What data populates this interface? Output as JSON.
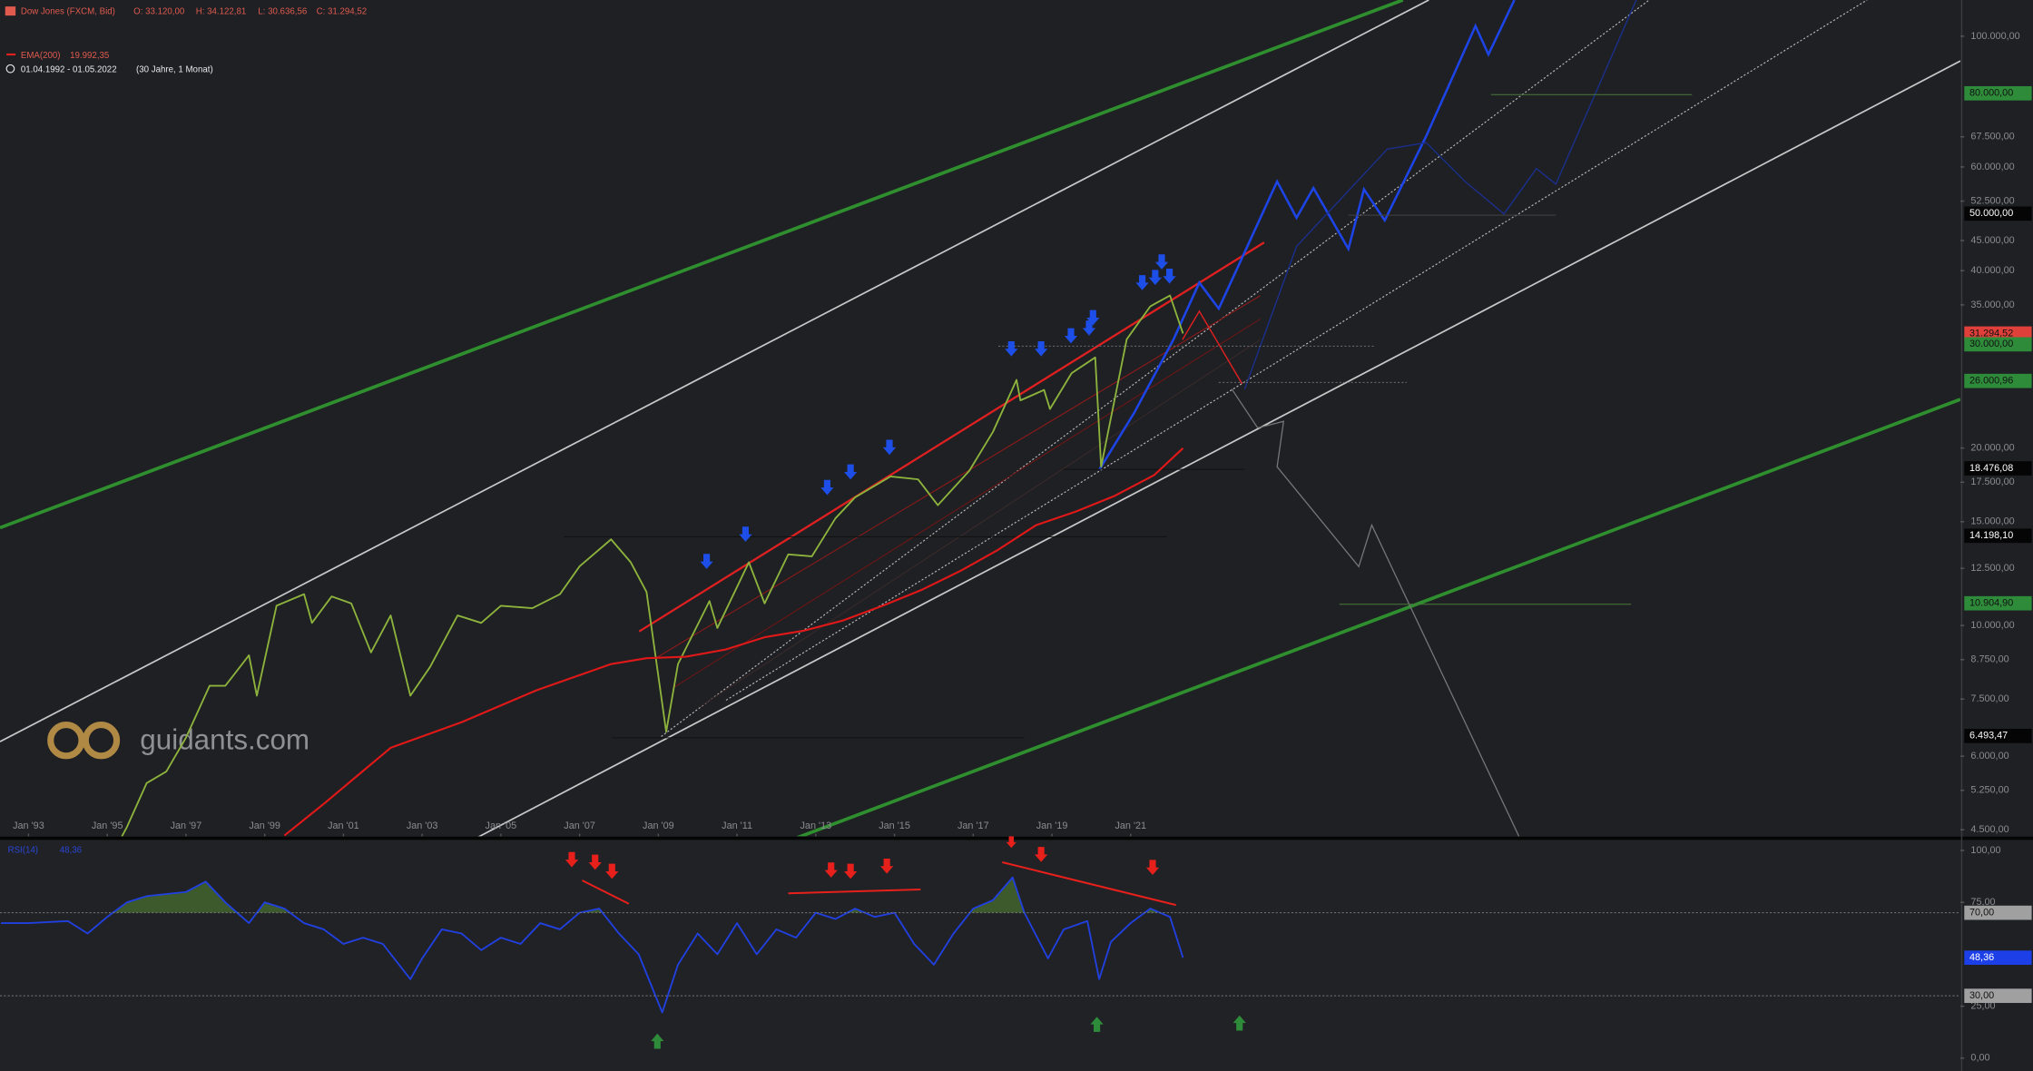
{
  "header": {
    "ohlc": [
      "O: 33.120,00",
      "H: 34.122,81",
      "L: 30.636,56",
      "C: 31.294,52"
    ],
    "range": "01.04.1992 - 01.05.2022",
    "span": "(30 Jahre, 1 Monat)"
  },
  "watermark": "guidants.com",
  "chart_data": [
    {
      "type": "line",
      "log_scale": true,
      "xlim": [
        1992.275,
        2042.08
      ],
      "ylim": [
        4387,
        115200
      ],
      "xticks": [
        {
          "value": 1993,
          "label": "Jan '93"
        },
        {
          "value": 1995,
          "label": "Jan '95"
        },
        {
          "value": 1997,
          "label": "Jan '97"
        },
        {
          "value": 1999,
          "label": "Jan '99"
        },
        {
          "value": 2001,
          "label": "Jan '01"
        },
        {
          "value": 2003,
          "label": "Jan '03"
        },
        {
          "value": 2005,
          "label": "Jan '05"
        },
        {
          "value": 2007,
          "label": "Jan '07"
        },
        {
          "value": 2009,
          "label": "Jan '09"
        },
        {
          "value": 2011,
          "label": "Jan '11"
        },
        {
          "value": 2013,
          "label": "Jan '13"
        },
        {
          "value": 2015,
          "label": "Jan '15"
        },
        {
          "value": 2017,
          "label": "Jan '17"
        },
        {
          "value": 2019,
          "label": "Jan '19"
        },
        {
          "value": 2021,
          "label": "Jan '21"
        }
      ],
      "yticks": [
        {
          "value": 100000,
          "label": "100.000,00"
        },
        {
          "value": 67500,
          "label": "67.500,00"
        },
        {
          "value": 60000,
          "label": "60.000,00"
        },
        {
          "value": 52500,
          "label": "52.500,00"
        },
        {
          "value": 45000,
          "label": "45.000,00"
        },
        {
          "value": 40000,
          "label": "40.000,00"
        },
        {
          "value": 35000,
          "label": "35.000,00"
        },
        {
          "value": 20000,
          "label": "20.000,00"
        },
        {
          "value": 17500,
          "label": "17.500,00"
        },
        {
          "value": 15000,
          "label": "15.000,00"
        },
        {
          "value": 12500,
          "label": "12.500,00"
        },
        {
          "value": 10000,
          "label": "10.000,00"
        },
        {
          "value": 8750,
          "label": "8.750,00"
        },
        {
          "value": 7500,
          "label": "7.500,00"
        },
        {
          "value": 6000,
          "label": "6.000,00"
        },
        {
          "value": 5250,
          "label": "5.250,00"
        },
        {
          "value": 4500,
          "label": "4.500,00"
        }
      ],
      "levels": [
        {
          "value": 80000,
          "label": "80.000,00",
          "color": "#2e8b3a",
          "text_color": "#111111"
        },
        {
          "value": 50000,
          "label": "50.000,00",
          "color": "#050505",
          "text_color": "#ffffff"
        },
        {
          "value": 31294.52,
          "label": "31.294,52",
          "color": "#e0403a",
          "text_color": "#111111"
        },
        {
          "value": 30000,
          "label": "30.000,00",
          "color": "#2e8b3a",
          "text_color": "#111111"
        },
        {
          "value": 26000.96,
          "label": "26.000,96",
          "color": "#2e8b3a",
          "text_color": "#111111"
        },
        {
          "value": 18476.08,
          "label": "18.476,08",
          "color": "#050505",
          "text_color": "#ffffff"
        },
        {
          "value": 14198.1,
          "label": "14.198,10",
          "color": "#050505",
          "text_color": "#ffffff"
        },
        {
          "value": 10904.9,
          "label": "10.904,90",
          "color": "#2e8b3a",
          "text_color": "#111111"
        },
        {
          "value": 6493.47,
          "label": "6.493,47",
          "color": "#050505",
          "text_color": "#ffffff"
        }
      ],
      "series": [
        {
          "name": "Dow Jones (FXCM, Bid)",
          "color": "#8db33c",
          "x": [
            1992.25,
            1993,
            1994,
            1994.9,
            1995.5,
            1996,
            1996.5,
            1997,
            1997.6,
            1998,
            1998.6,
            1998.8,
            1999.3,
            2000,
            2000.2,
            2000.7,
            2001.2,
            2001.7,
            2002.2,
            2002.7,
            2003.2,
            2003.9,
            2004.5,
            2005,
            2005.8,
            2006.5,
            2007,
            2007.8,
            2008.3,
            2008.7,
            2009.2,
            2009.5,
            2010.3,
            2010.5,
            2011.3,
            2011.7,
            2012.3,
            2012.9,
            2013.5,
            2014,
            2014.9,
            2015.6,
            2016.1,
            2016.9,
            2017.5,
            2018.1,
            2018.2,
            2018.8,
            2018.95,
            2019.5,
            2020.1,
            2020.25,
            2020.9,
            2021.5,
            2022,
            2022.33
          ],
          "values": [
            3300,
            3300,
            3900,
            3830,
            4550,
            5400,
            5650,
            6450,
            7900,
            7900,
            8900,
            7600,
            10800,
            11300,
            10100,
            11200,
            10900,
            9000,
            10400,
            7600,
            8500,
            10400,
            10100,
            10800,
            10700,
            11300,
            12600,
            14000,
            12800,
            11400,
            6600,
            8600,
            11000,
            9900,
            12800,
            10900,
            13200,
            13100,
            15200,
            16500,
            17900,
            17700,
            16000,
            18300,
            21300,
            26100,
            24100,
            25100,
            23300,
            26800,
            28500,
            18600,
            30600,
            34800,
            36300,
            31294.52
          ]
        },
        {
          "name": "EMA(200)",
          "last_label": "19.992,35",
          "color": "#e01818",
          "x": [
            1999.5,
            2000.5,
            2002.2,
            2004,
            2005.9,
            2007.8,
            2008.7,
            2009.7,
            2010.7,
            2011.7,
            2012.7,
            2013.7,
            2014.7,
            2015.7,
            2016.7,
            2017.6,
            2018.6,
            2019.6,
            2020.6,
            2021.6,
            2022.33
          ],
          "values": [
            4400,
            4980,
            6200,
            6850,
            7760,
            8600,
            8800,
            8850,
            9100,
            9550,
            9800,
            10200,
            10800,
            11500,
            12400,
            13400,
            14800,
            15600,
            16600,
            18000,
            19992.35
          ]
        }
      ]
    },
    {
      "type": "line",
      "log_scale": false,
      "xlim": [
        1992.275,
        2042.08
      ],
      "ylim": [
        -6.2,
        104.3
      ],
      "overbought_fill": "#3d5a2c",
      "yticks": [
        {
          "value": 100,
          "label": "100,00"
        },
        {
          "value": 75,
          "label": "75,00"
        },
        {
          "value": 25,
          "label": "25,00"
        },
        {
          "value": 0,
          "label": "0,00"
        }
      ],
      "levels": [
        {
          "value": 70,
          "label": "70,00",
          "color": "#a0a0a0",
          "text_color": "#111111",
          "line": true
        },
        {
          "value": 48.36,
          "label": "48,36",
          "color": "#1d3fe8",
          "text_color": "#ffffff",
          "line": false
        },
        {
          "value": 30,
          "label": "30,00",
          "color": "#a0a0a0",
          "text_color": "#111111",
          "line": true
        }
      ],
      "series": [
        {
          "name": "RSI(14)",
          "last_label": "48,36",
          "color": "#2140e0",
          "x": [
            1992.3,
            1993,
            1994,
            1994.5,
            1995,
            1995.5,
            1996,
            1997,
            1997.5,
            1998,
            1998.6,
            1999,
            1999.5,
            2000,
            2000.5,
            2001,
            2001.5,
            2002,
            2002.7,
            2003,
            2003.5,
            2004,
            2004.5,
            2005,
            2005.5,
            2006,
            2006.5,
            2007,
            2007.5,
            2008,
            2008.5,
            2009.1,
            2009.5,
            2010,
            2010.5,
            2011,
            2011.5,
            2012,
            2012.5,
            2013,
            2013.5,
            2014,
            2014.5,
            2015,
            2015.5,
            2016,
            2016.5,
            2017,
            2017.5,
            2018,
            2018.3,
            2018.9,
            2019.3,
            2019.9,
            2020.2,
            2020.5,
            2021,
            2021.5,
            2022,
            2022.33
          ],
          "values": [
            65,
            65,
            66,
            60,
            68,
            75,
            78,
            80,
            85,
            75,
            65,
            75,
            72,
            65,
            62,
            55,
            58,
            55,
            38,
            48,
            62,
            60,
            52,
            58,
            55,
            65,
            62,
            70,
            72,
            60,
            50,
            22,
            45,
            60,
            50,
            65,
            50,
            62,
            58,
            70,
            67,
            72,
            68,
            70,
            55,
            45,
            60,
            72,
            76,
            87,
            70,
            48,
            62,
            66,
            38,
            56,
            65,
            72,
            68,
            48.36
          ]
        }
      ]
    }
  ]
}
